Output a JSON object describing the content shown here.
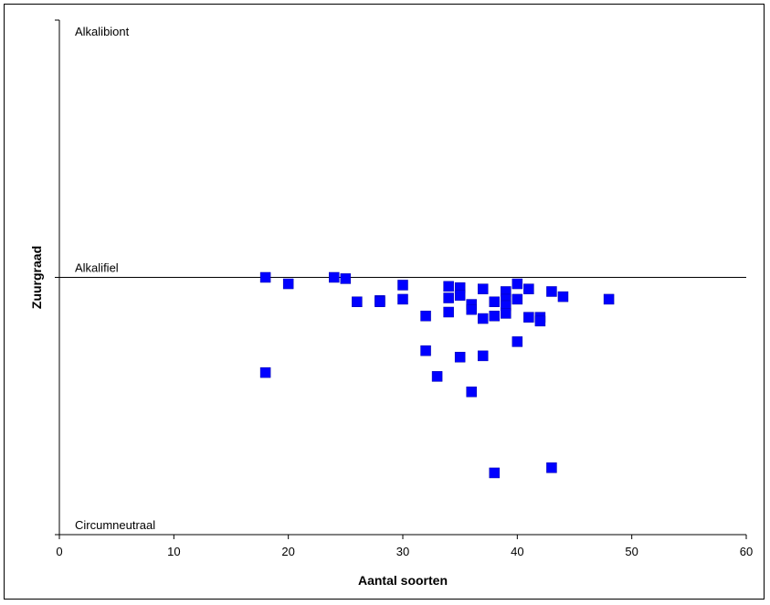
{
  "chart_data": {
    "type": "scatter",
    "xlabel": "Aantal soorten",
    "ylabel": "Zuurgraad",
    "xlim": [
      0,
      60
    ],
    "ylim": [
      0,
      2
    ],
    "x_ticks": [
      0,
      10,
      20,
      30,
      40,
      50,
      60
    ],
    "y_band_labels": [
      {
        "label": "Alkalibiont",
        "y": 2
      },
      {
        "label": "Alkalifiel",
        "y": 1
      },
      {
        "label": "Circumneutraal",
        "y": 0
      }
    ],
    "reference_line_y": 1,
    "grid": false,
    "legend": "none",
    "marker_color": "#0000FF",
    "points": [
      {
        "x": 18,
        "y": 1.0
      },
      {
        "x": 18,
        "y": 0.63
      },
      {
        "x": 20,
        "y": 0.975
      },
      {
        "x": 24,
        "y": 1.0
      },
      {
        "x": 25,
        "y": 0.995
      },
      {
        "x": 26,
        "y": 0.905
      },
      {
        "x": 28,
        "y": 0.91
      },
      {
        "x": 28,
        "y": 0.905
      },
      {
        "x": 30,
        "y": 0.97
      },
      {
        "x": 30,
        "y": 0.915
      },
      {
        "x": 32,
        "y": 0.85
      },
      {
        "x": 32,
        "y": 0.715
      },
      {
        "x": 33,
        "y": 0.615
      },
      {
        "x": 34,
        "y": 0.965
      },
      {
        "x": 34,
        "y": 0.92
      },
      {
        "x": 34,
        "y": 0.865
      },
      {
        "x": 35,
        "y": 0.96
      },
      {
        "x": 35,
        "y": 0.93
      },
      {
        "x": 35,
        "y": 0.69
      },
      {
        "x": 36,
        "y": 0.895
      },
      {
        "x": 36,
        "y": 0.875
      },
      {
        "x": 36,
        "y": 0.555
      },
      {
        "x": 37,
        "y": 0.955
      },
      {
        "x": 37,
        "y": 0.84
      },
      {
        "x": 37,
        "y": 0.695
      },
      {
        "x": 38,
        "y": 0.905
      },
      {
        "x": 38,
        "y": 0.85
      },
      {
        "x": 38,
        "y": 0.24
      },
      {
        "x": 39,
        "y": 0.945
      },
      {
        "x": 39,
        "y": 0.915
      },
      {
        "x": 39,
        "y": 0.89
      },
      {
        "x": 39,
        "y": 0.86
      },
      {
        "x": 40,
        "y": 0.975
      },
      {
        "x": 40,
        "y": 0.915
      },
      {
        "x": 40,
        "y": 0.75
      },
      {
        "x": 41,
        "y": 0.955
      },
      {
        "x": 41,
        "y": 0.845
      },
      {
        "x": 42,
        "y": 0.845
      },
      {
        "x": 42,
        "y": 0.83
      },
      {
        "x": 43,
        "y": 0.945
      },
      {
        "x": 43,
        "y": 0.26
      },
      {
        "x": 44,
        "y": 0.925
      },
      {
        "x": 48,
        "y": 0.915
      }
    ]
  }
}
